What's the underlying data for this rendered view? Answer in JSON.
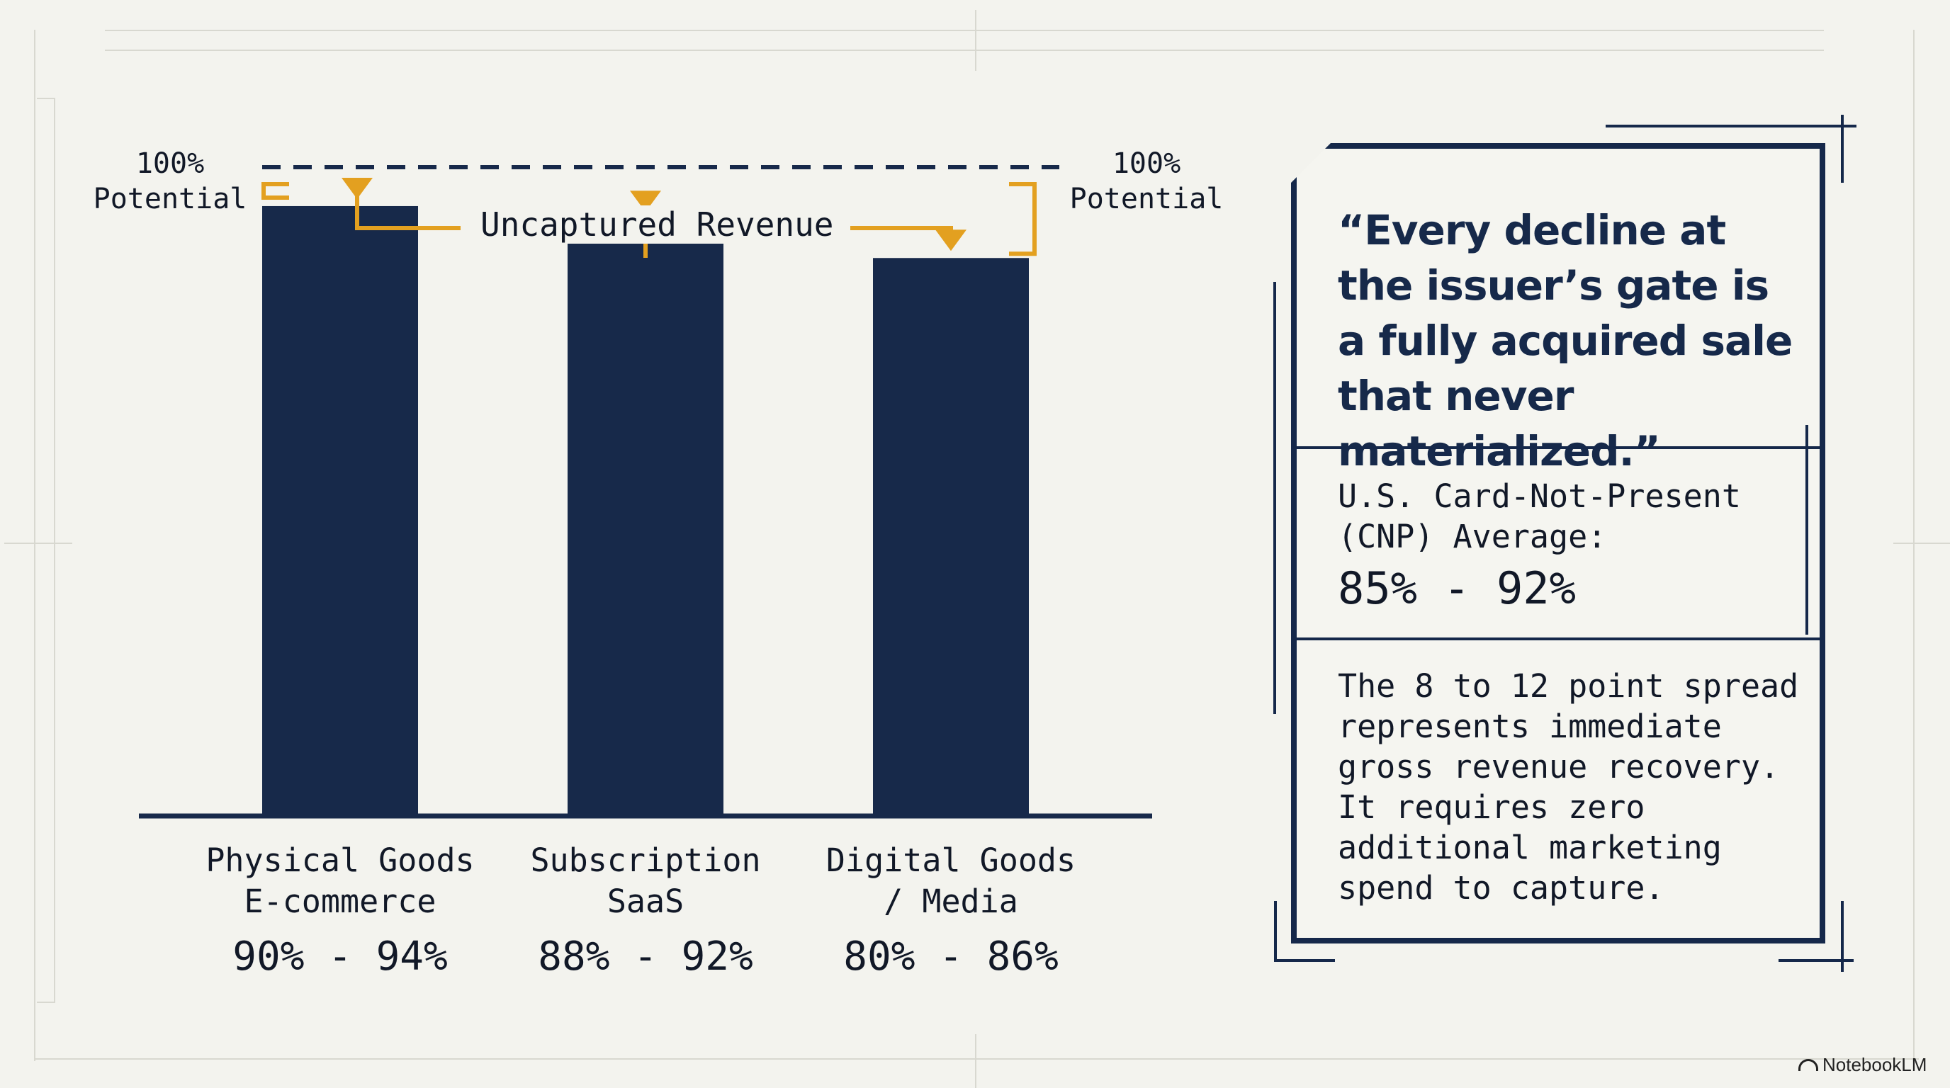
{
  "chart_data": {
    "type": "bar",
    "categories": [
      "Physical Goods E-commerce",
      "Subscription SaaS",
      "Digital Goods / Media"
    ],
    "category_lines": [
      [
        "Physical Goods",
        "E-commerce"
      ],
      [
        "Subscription",
        "SaaS"
      ],
      [
        "Digital Goods",
        "/ Media"
      ]
    ],
    "ranges": [
      [
        90,
        94
      ],
      [
        88,
        92
      ],
      [
        80,
        86
      ]
    ],
    "range_labels": [
      "90% - 94%",
      "88% - 92%",
      "80% - 86%"
    ],
    "values": [
      94,
      92,
      86
    ],
    "ylim": [
      0,
      100
    ],
    "reference_line": {
      "value": 100,
      "label_line1": "100%",
      "label_line2": "Potential"
    },
    "annotation": "Uncaptured Revenue",
    "colors": {
      "bar": "#17294a",
      "accent": "#e3a020",
      "axis": "#17294a"
    }
  },
  "panel": {
    "quote": "“Every decline at the issuer’s gate is a fully acquired sale that never materialized.”",
    "cnp_label": "U.S. Card-Not-Present (CNP) Average:",
    "cnp_value": "85% - 92%",
    "body": "The 8 to 12 point spread represents immediate gross revenue recovery. It requires zero additional marketing spend to capture."
  },
  "brand": {
    "name": "NotebookLM",
    "icon": "notebooklm-logo-icon"
  }
}
